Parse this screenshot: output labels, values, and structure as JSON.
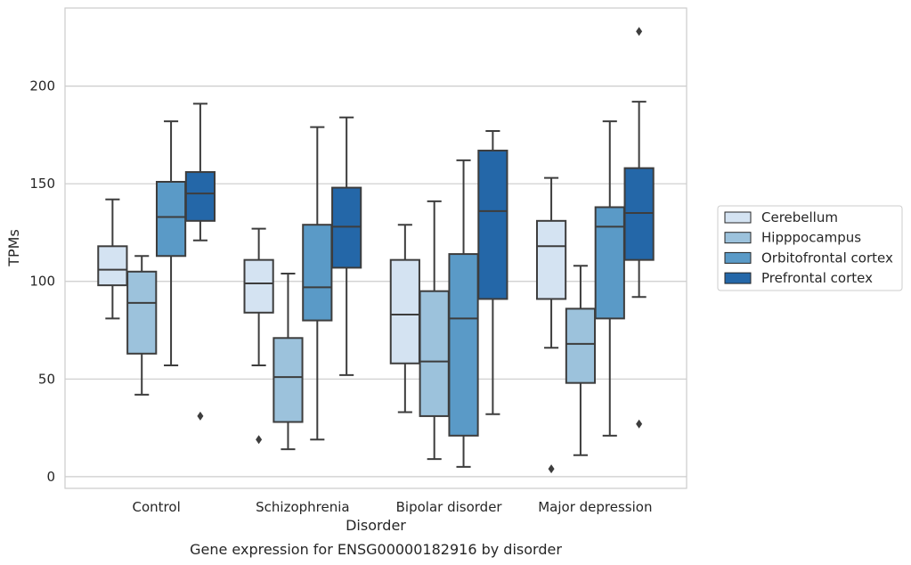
{
  "chart_data": {
    "type": "box",
    "xlabel": "Disorder",
    "ylabel": "TPMs",
    "caption": "Gene expression for ENSG00000182916 by disorder",
    "ylim": [
      -6,
      240
    ],
    "yticks": [
      0,
      50,
      100,
      150,
      200
    ],
    "grid": true,
    "legend_position": "right",
    "categories": [
      "Control",
      "Schizophrenia",
      "Bipolar disorder",
      "Major depression"
    ],
    "series": [
      {
        "name": "Cerebellum",
        "color": "#d4e3f2",
        "boxes": [
          {
            "whisker_low": 81,
            "q1": 98,
            "median": 106,
            "q3": 118,
            "whisker_high": 142,
            "outliers": []
          },
          {
            "whisker_low": 57,
            "q1": 84,
            "median": 99,
            "q3": 111,
            "whisker_high": 127,
            "outliers": [
              19
            ]
          },
          {
            "whisker_low": 33,
            "q1": 58,
            "median": 83,
            "q3": 111,
            "whisker_high": 129,
            "outliers": []
          },
          {
            "whisker_low": 66,
            "q1": 91,
            "median": 118,
            "q3": 131,
            "whisker_high": 153,
            "outliers": [
              4
            ]
          }
        ]
      },
      {
        "name": "Hipppocampus",
        "color": "#9cc2dc",
        "boxes": [
          {
            "whisker_low": 42,
            "q1": 63,
            "median": 89,
            "q3": 105,
            "whisker_high": 113,
            "outliers": []
          },
          {
            "whisker_low": 14,
            "q1": 28,
            "median": 51,
            "q3": 71,
            "whisker_high": 104,
            "outliers": []
          },
          {
            "whisker_low": 9,
            "q1": 31,
            "median": 59,
            "q3": 95,
            "whisker_high": 141,
            "outliers": []
          },
          {
            "whisker_low": 11,
            "q1": 48,
            "median": 68,
            "q3": 86,
            "whisker_high": 108,
            "outliers": []
          }
        ]
      },
      {
        "name": "Orbitofrontal cortex",
        "color": "#5a9ac7",
        "boxes": [
          {
            "whisker_low": 57,
            "q1": 113,
            "median": 133,
            "q3": 151,
            "whisker_high": 182,
            "outliers": []
          },
          {
            "whisker_low": 19,
            "q1": 80,
            "median": 97,
            "q3": 129,
            "whisker_high": 179,
            "outliers": []
          },
          {
            "whisker_low": 5,
            "q1": 21,
            "median": 81,
            "q3": 114,
            "whisker_high": 162,
            "outliers": []
          },
          {
            "whisker_low": 21,
            "q1": 81,
            "median": 128,
            "q3": 138,
            "whisker_high": 182,
            "outliers": []
          }
        ]
      },
      {
        "name": "Prefrontal cortex",
        "color": "#2467a8",
        "boxes": [
          {
            "whisker_low": 121,
            "q1": 131,
            "median": 145,
            "q3": 156,
            "whisker_high": 191,
            "outliers": [
              31
            ]
          },
          {
            "whisker_low": 52,
            "q1": 107,
            "median": 128,
            "q3": 148,
            "whisker_high": 184,
            "outliers": []
          },
          {
            "whisker_low": 32,
            "q1": 91,
            "median": 136,
            "q3": 167,
            "whisker_high": 177,
            "outliers": []
          },
          {
            "whisker_low": 92,
            "q1": 111,
            "median": 135,
            "q3": 158,
            "whisker_high": 192,
            "outliers": [
              27,
              228
            ]
          }
        ]
      }
    ]
  }
}
